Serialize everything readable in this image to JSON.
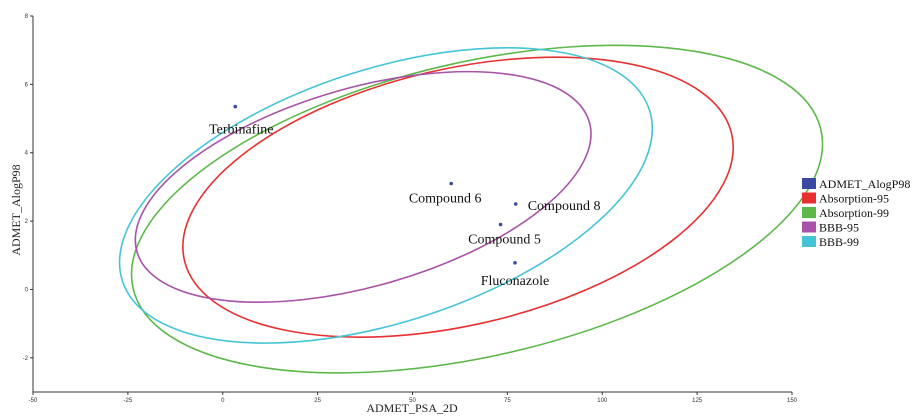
{
  "chart_data": {
    "type": "scatter",
    "xlabel": "ADMET_PSA_2D",
    "ylabel": "ADMET_AlogP98",
    "xlim": [
      -50,
      150
    ],
    "ylim": [
      -3,
      8
    ],
    "xticks": [
      -50,
      -25,
      0,
      25,
      50,
      75,
      100,
      125,
      150
    ],
    "yticks": [
      -2,
      0,
      2,
      4,
      6,
      8
    ],
    "points": [
      {
        "label": "Terbinafine",
        "x": 3.3,
        "y": 5.35
      },
      {
        "label": "Compound 6",
        "x": 60.2,
        "y": 3.1
      },
      {
        "label": "Compound 8",
        "x": 77.2,
        "y": 2.5
      },
      {
        "label": "Compound 5",
        "x": 73.2,
        "y": 1.9
      },
      {
        "label": "Fluconazole",
        "x": 77.0,
        "y": 0.78
      }
    ],
    "ellipses": [
      {
        "name": "Absorption-95",
        "color": "#e83030",
        "cx": 62,
        "cy": 2.7,
        "rx": 74,
        "ry": 3.75,
        "angle_deg": -13
      },
      {
        "name": "Absorption-99",
        "color": "#5cb848",
        "cx": 67,
        "cy": 2.35,
        "rx": 93,
        "ry": 4.3,
        "angle_deg": -13
      },
      {
        "name": "BBB-95",
        "color": "#a852a8",
        "cx": 37,
        "cy": 3.0,
        "rx": 62,
        "ry": 2.9,
        "angle_deg": -16
      },
      {
        "name": "BBB-99",
        "color": "#45c4d8",
        "cx": 43,
        "cy": 2.75,
        "rx": 73,
        "ry": 3.7,
        "angle_deg": -18
      }
    ],
    "legend": {
      "position": "right",
      "items": [
        {
          "name": "ADMET_AlogP98",
          "color": "#3a4aa0"
        },
        {
          "name": "Absorption-95",
          "color": "#e83030"
        },
        {
          "name": "Absorption-99",
          "color": "#5cb848"
        },
        {
          "name": "BBB-95",
          "color": "#a852a8"
        },
        {
          "name": "BBB-99",
          "color": "#45c4d8"
        }
      ]
    },
    "point_color": "#3a4aa0"
  }
}
